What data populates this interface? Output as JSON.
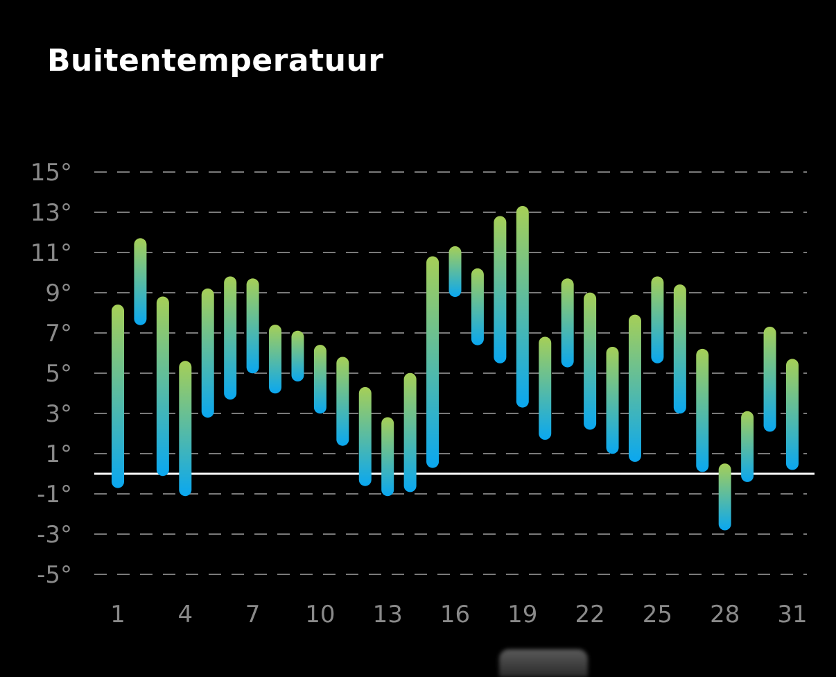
{
  "title": "Buitentemperatuur",
  "colors": {
    "background": "#000000",
    "bar_top": "#a6cf57",
    "bar_bottom": "#0aa7f0",
    "gridline": "#7a7a7a",
    "zero_line": "#ffffff",
    "tick_text": "#8a8a8a"
  },
  "chart_data": {
    "type": "bar",
    "subtype": "floating-range",
    "title": "Buitentemperatuur",
    "xlabel": "",
    "ylabel": "",
    "x": [
      1,
      2,
      3,
      4,
      5,
      6,
      7,
      8,
      9,
      10,
      11,
      12,
      13,
      14,
      15,
      16,
      17,
      18,
      19,
      20,
      21,
      22,
      23,
      24,
      25,
      26,
      27,
      28,
      29,
      30,
      31
    ],
    "low": [
      -0.4,
      7.7,
      0.2,
      -0.8,
      3.1,
      4.0,
      5.3,
      4.3,
      4.9,
      3.3,
      1.7,
      -0.3,
      -0.8,
      -0.6,
      0.6,
      9.1,
      6.7,
      5.8,
      3.6,
      2.0,
      5.6,
      2.5,
      1.3,
      0.9,
      5.8,
      3.3,
      0.4,
      -2.5,
      -0.1,
      2.4,
      0.5
    ],
    "high": [
      8.1,
      11.4,
      8.5,
      5.3,
      8.9,
      9.5,
      9.4,
      7.1,
      6.8,
      6.1,
      5.5,
      4.0,
      2.5,
      4.7,
      10.5,
      11.0,
      9.9,
      12.5,
      13.0,
      6.5,
      9.4,
      8.7,
      6.0,
      7.6,
      9.5,
      9.1,
      5.9,
      0.2,
      2.8,
      7.0,
      5.4
    ],
    "yticks": [
      15,
      13,
      11,
      9,
      7,
      5,
      3,
      1,
      -1,
      -3,
      -5
    ],
    "ytick_labels": [
      "15°",
      "13°",
      "11°",
      "9°",
      "7°",
      "5°",
      "3°",
      "1°",
      "-1°",
      "-3°",
      "-5°"
    ],
    "xticks": [
      1,
      4,
      7,
      10,
      13,
      16,
      19,
      22,
      25,
      28,
      31
    ],
    "xtick_labels": [
      "1",
      "4",
      "7",
      "10",
      "13",
      "16",
      "19",
      "22",
      "25",
      "28",
      "31"
    ],
    "ylim": [
      -5,
      15
    ],
    "grid": true,
    "grid_style": "dashed",
    "zero_line": true,
    "legend": "none"
  }
}
